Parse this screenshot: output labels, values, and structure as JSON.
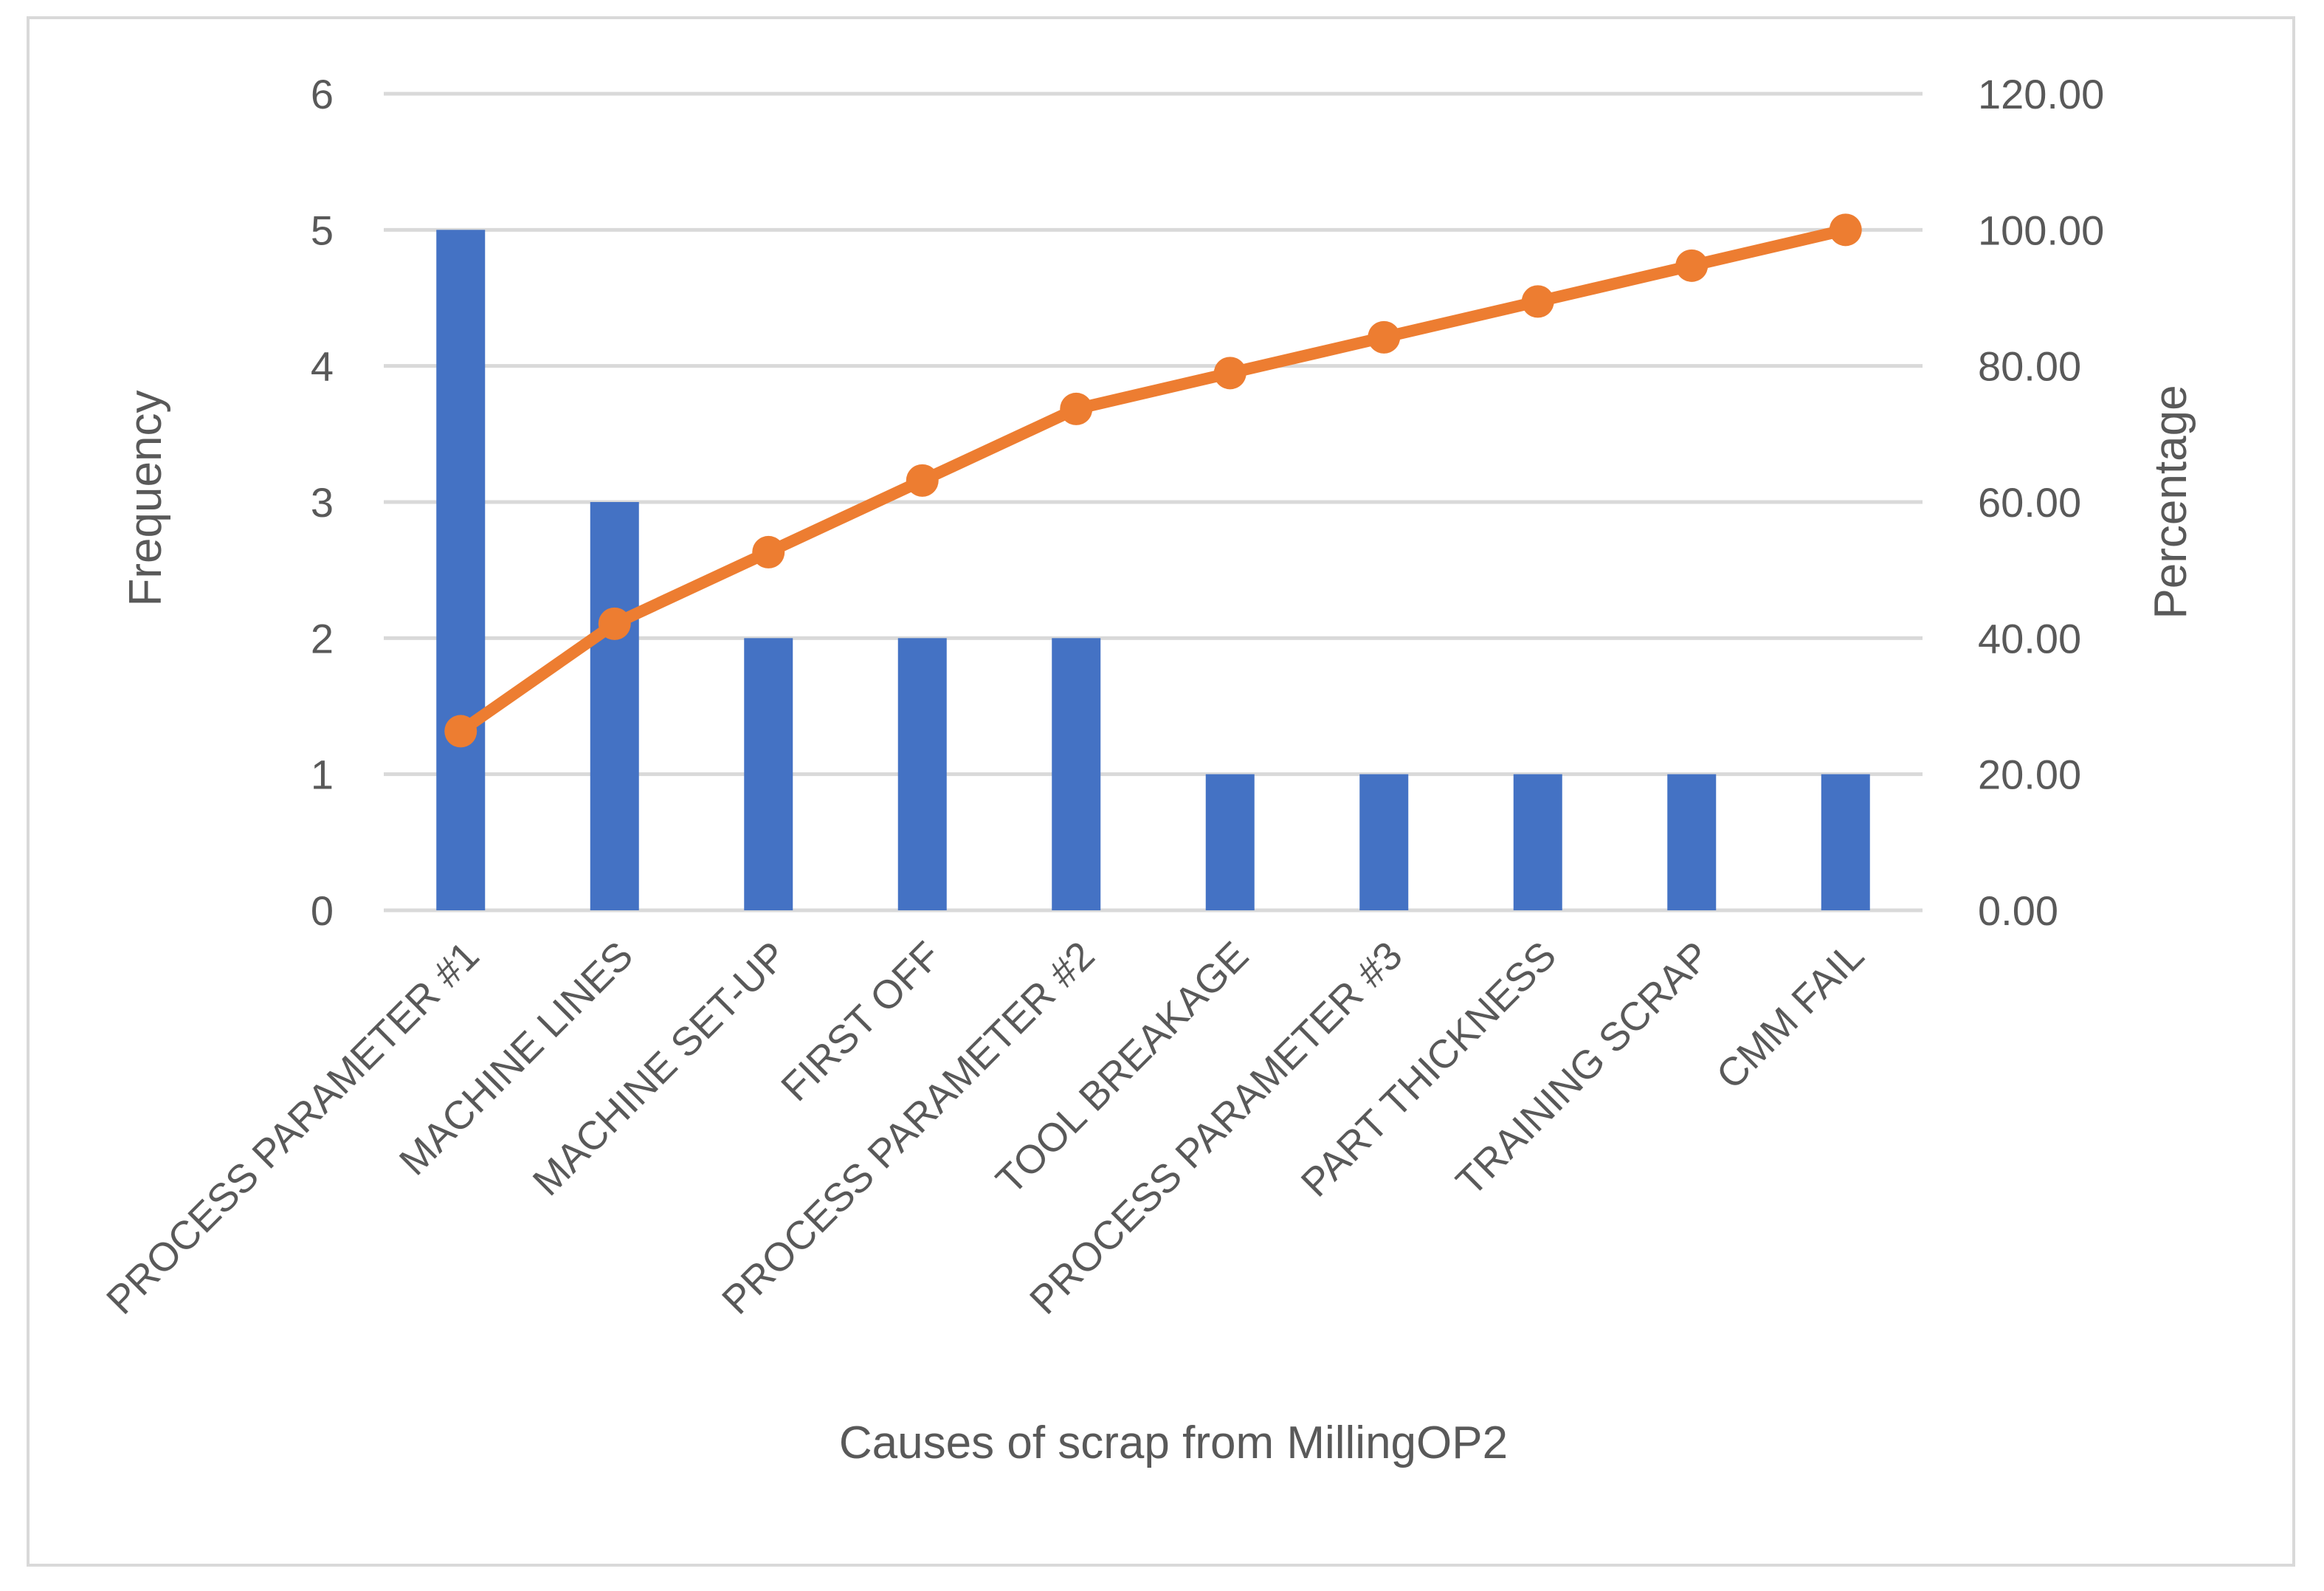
{
  "chart_data": {
    "type": "bar",
    "title": "",
    "xlabel": "Causes of scrap from MillingOP2",
    "ylabel": "Frequency",
    "y2label": "Percentage",
    "categories": [
      "PROCESS PARAMETER #1",
      "MACHINE LINES",
      "MACHINE SET-UP",
      "FIRST OFF",
      "PROCESS PARAMETER #2",
      "TOOL BREAKAGE",
      "PROCESS PARAMETER #3",
      "PART THICKNESS",
      "TRAINING SCRAP",
      "CMM FAIL"
    ],
    "series": [
      {
        "name": "Frequency",
        "type": "bar",
        "axis": "left",
        "color": "#4472C4",
        "values": [
          5,
          3,
          2,
          2,
          2,
          1,
          1,
          1,
          1,
          1
        ]
      },
      {
        "name": "Percentage",
        "type": "line",
        "axis": "right",
        "color": "#ED7D31",
        "values": [
          26.32,
          42.11,
          52.63,
          63.16,
          73.68,
          78.95,
          84.21,
          89.47,
          94.74,
          100.0
        ]
      }
    ],
    "ylim": [
      0,
      6
    ],
    "y2lim": [
      0,
      120
    ],
    "y_ticks": [
      "0",
      "1",
      "2",
      "3",
      "4",
      "5",
      "6"
    ],
    "y2_ticks": [
      "0.00",
      "20.00",
      "40.00",
      "60.00",
      "80.00",
      "100.00",
      "120.00"
    ],
    "grid": true,
    "legend": "none",
    "colors": {
      "grid": "#D9D9D9",
      "text": "#595959",
      "border": "#D9D9D9"
    }
  }
}
